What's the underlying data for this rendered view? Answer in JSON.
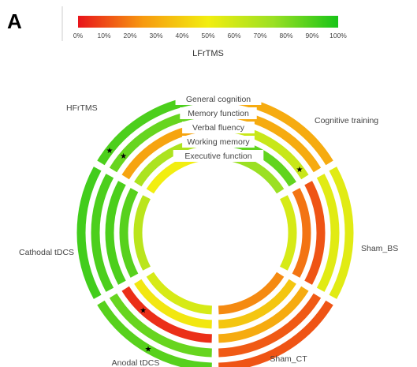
{
  "panel_label": "A",
  "colorbar": {
    "title": "LFrTMS",
    "ticks": [
      "0%",
      "10%",
      "20%",
      "30%",
      "40%",
      "50%",
      "60%",
      "70%",
      "80%",
      "90%",
      "100%"
    ],
    "stops": [
      {
        "value": 0,
        "color": "#e8141a"
      },
      {
        "value": 0.25,
        "color": "#f79a10"
      },
      {
        "value": 0.5,
        "color": "#f2ee10"
      },
      {
        "value": 0.75,
        "color": "#9be023"
      },
      {
        "value": 1,
        "color": "#18c418"
      }
    ]
  },
  "chart_data": {
    "type": "radial-heatmap",
    "rings": [
      "General cognition",
      "Memory function",
      "Verbal fluency",
      "Working memory",
      "Executive function"
    ],
    "sectors": [
      "Cognitive training",
      "Sham_BS",
      "Sham_CT",
      "Anodal tDCS",
      "Cathodal tDCS",
      "HFrTMS"
    ],
    "values": [
      [
        0.3,
        0.55,
        0.12,
        0.88,
        0.92,
        0.9
      ],
      [
        0.3,
        0.55,
        0.13,
        0.85,
        0.9,
        0.85
      ],
      [
        0.62,
        0.12,
        0.3,
        0.05,
        0.9,
        0.28
      ],
      [
        0.86,
        0.18,
        0.38,
        0.48,
        0.88,
        0.7
      ],
      [
        0.75,
        0.58,
        0.22,
        0.58,
        0.66,
        0.5
      ]
    ],
    "significant": [
      {
        "ring": 0,
        "sector": 5
      },
      {
        "ring": 1,
        "sector": 5
      },
      {
        "ring": 2,
        "sector": 0
      },
      {
        "ring": 2,
        "sector": 3
      },
      {
        "ring": 0,
        "sector": 3
      }
    ],
    "star_symbol": "★"
  }
}
